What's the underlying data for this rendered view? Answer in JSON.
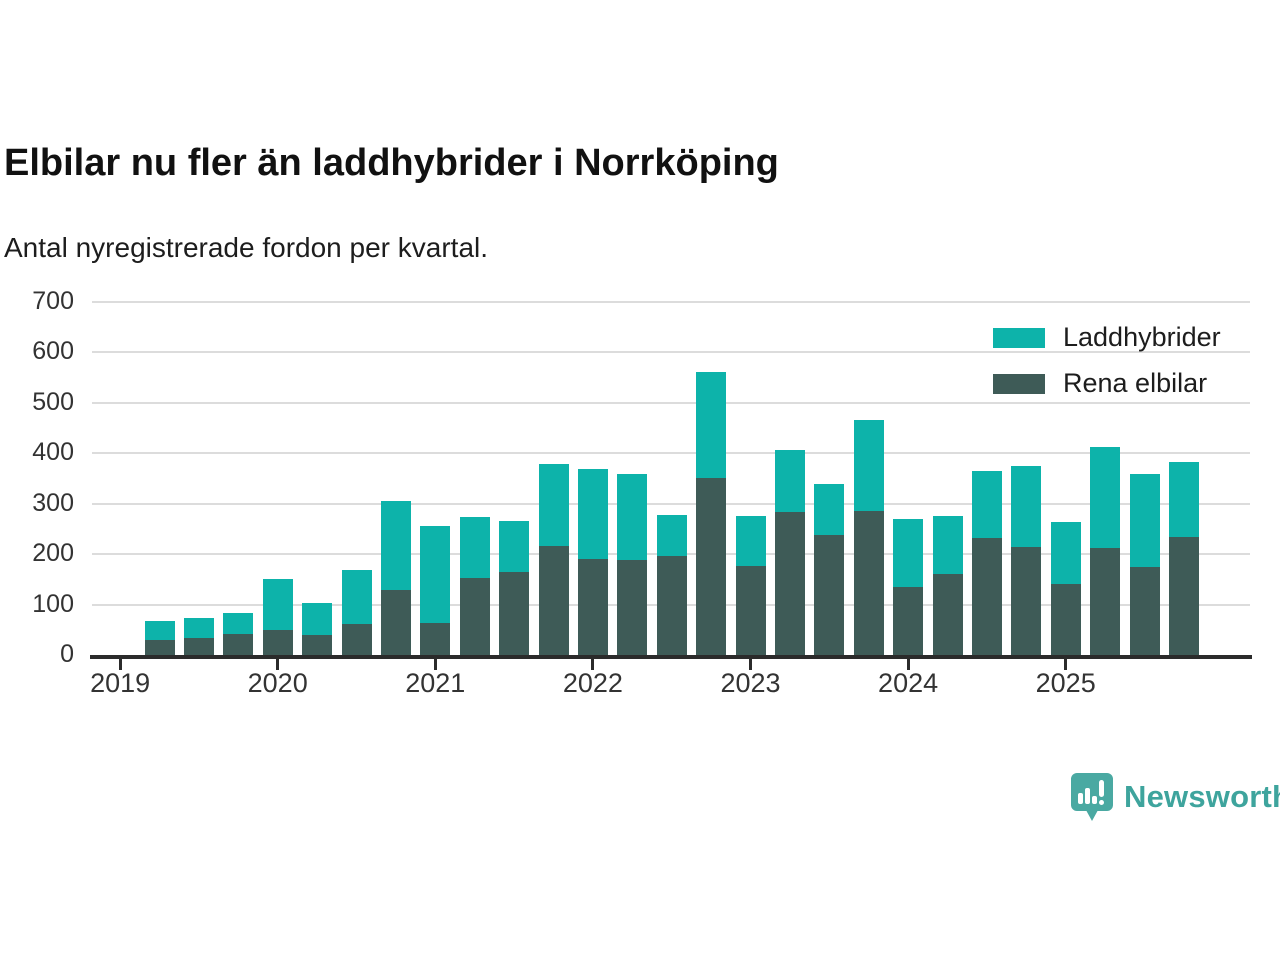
{
  "header": {
    "title": "Elbilar nu fler än laddhybrider i Norrköping",
    "subtitle": "Antal nyregistrerade fordon per kvartal."
  },
  "chart_data": {
    "type": "bar",
    "stacked": true,
    "title": "Elbilar nu fler än laddhybrider i Norrköping",
    "subtitle": "Antal nyregistrerade fordon per kvartal.",
    "ylim": [
      0,
      700
    ],
    "yticks": [
      0,
      100,
      200,
      300,
      400,
      500,
      600,
      700
    ],
    "grid": "horizontal",
    "legend_position": "top-right",
    "categories": [
      "2019 Q2",
      "2019 Q3",
      "2019 Q4",
      "2020 Q1",
      "2020 Q2",
      "2020 Q3",
      "2020 Q4",
      "2021 Q1",
      "2021 Q2",
      "2021 Q3",
      "2021 Q4",
      "2022 Q1",
      "2022 Q2",
      "2022 Q3",
      "2022 Q4",
      "2023 Q1",
      "2023 Q2",
      "2023 Q3",
      "2023 Q4",
      "2024 Q1",
      "2024 Q2",
      "2024 Q3",
      "2024 Q4",
      "2025 Q1",
      "2025 Q2",
      "2025 Q3",
      "2025 Q4"
    ],
    "series": [
      {
        "name": "Laddhybrider",
        "color": "#0db3aa",
        "values": [
          39,
          39,
          42,
          102,
          64,
          108,
          178,
          192,
          121,
          101,
          162,
          178,
          170,
          80,
          210,
          99,
          122,
          102,
          182,
          136,
          114,
          132,
          160,
          124,
          200,
          184,
          148
        ]
      },
      {
        "name": "Rena elbilar",
        "color": "#3e5b57",
        "values": [
          29,
          34,
          41,
          49,
          40,
          61,
          128,
          64,
          153,
          164,
          216,
          190,
          188,
          197,
          352,
          177,
          284,
          238,
          285,
          134,
          161,
          233,
          215,
          140,
          212,
          174,
          234
        ]
      }
    ],
    "stack_bottom_series": "Rena elbilar",
    "x_year_ticks": [
      {
        "label": "2019",
        "bar_index": -1
      },
      {
        "label": "2020",
        "bar_index": 3
      },
      {
        "label": "2021",
        "bar_index": 7
      },
      {
        "label": "2022",
        "bar_index": 11
      },
      {
        "label": "2023",
        "bar_index": 15
      },
      {
        "label": "2024",
        "bar_index": 19
      },
      {
        "label": "2025",
        "bar_index": 23
      }
    ],
    "axis_color": "#2b2b2b",
    "gridline_color": "#dcdcdc"
  },
  "footer": {
    "brand": "Newsworthy",
    "brand_color": "#3ea49d",
    "logo_color": "#4aa9a2"
  }
}
